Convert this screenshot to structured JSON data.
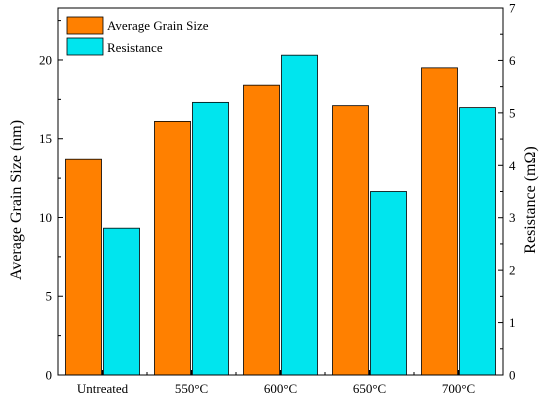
{
  "chart_data": {
    "type": "bar",
    "categories": [
      "Untreated",
      "550°C",
      "600°C",
      "650°C",
      "700°C"
    ],
    "series": [
      {
        "name": "Average Grain Size",
        "axis": "left",
        "color": "#FF8000",
        "values": [
          13.7,
          16.1,
          18.4,
          17.1,
          19.5
        ]
      },
      {
        "name": "Resistance",
        "axis": "right",
        "color": "#00E5EE",
        "values": [
          2.8,
          5.2,
          6.1,
          3.5,
          5.1
        ]
      }
    ],
    "ylabel_left": "Average Grain Size (nm)",
    "ylabel_right": "Resistance (mΩ)",
    "ylim_left": [
      0,
      23.3
    ],
    "ylim_right": [
      0,
      7
    ],
    "yticks_left": [
      "0",
      "5",
      "10",
      "15",
      "20"
    ],
    "yticks_right": [
      "0",
      "1",
      "2",
      "3",
      "4",
      "5",
      "6",
      "7"
    ],
    "grid": false,
    "legend": "top-left"
  }
}
